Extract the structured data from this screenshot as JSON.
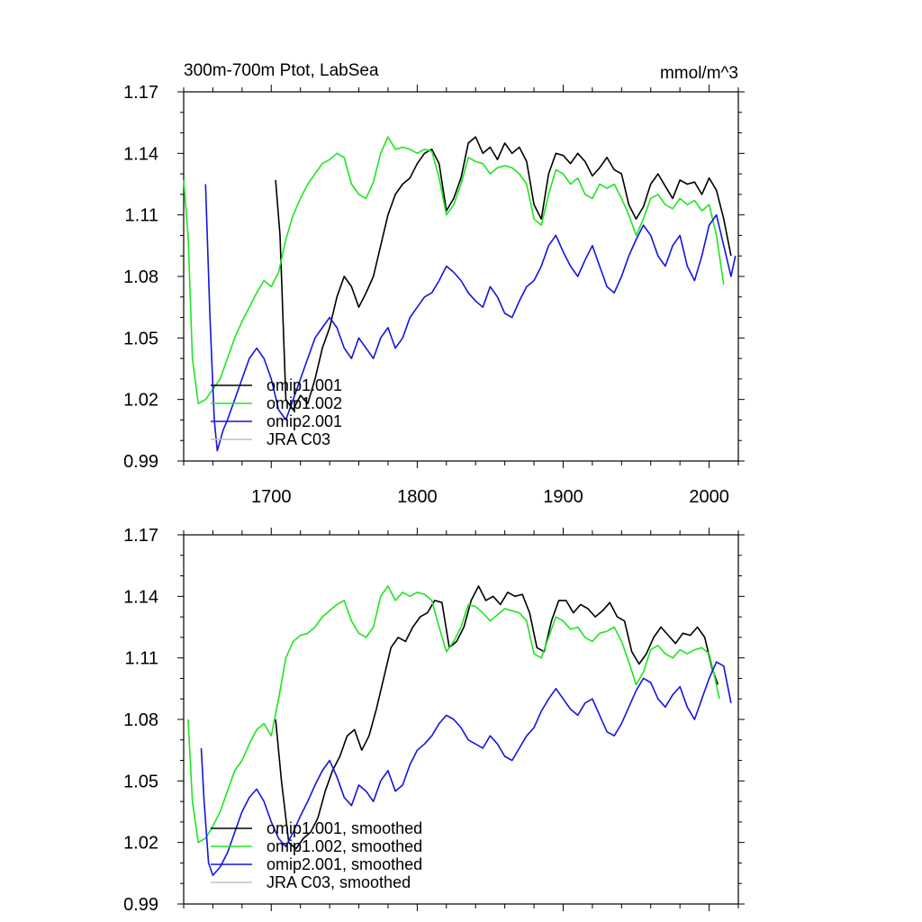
{
  "chart_data": [
    {
      "type": "line",
      "title_left": "300m-700m Ptot, LabSea",
      "title_right": "mmol/m^3",
      "xlim": [
        1640,
        2020
      ],
      "ylim": [
        0.99,
        1.17
      ],
      "xticks": [
        1700,
        1800,
        1900,
        2000
      ],
      "show_xtick_labels": true,
      "yticks": [
        0.99,
        1.02,
        1.05,
        1.08,
        1.11,
        1.14,
        1.17
      ],
      "ytick_labels": [
        "0.99",
        "1.02",
        "1.05",
        "1.08",
        "1.11",
        "1.14",
        "1.17"
      ],
      "legend_position": "bottom-left",
      "legend": [
        "omip1.001",
        "omip1.002",
        "omip2.001",
        "JRA C03"
      ],
      "series": [
        {
          "name": "omip1.001",
          "color": "#000000",
          "x": [
            1703,
            1706,
            1710,
            1715,
            1720,
            1725,
            1730,
            1735,
            1740,
            1745,
            1750,
            1755,
            1760,
            1765,
            1770,
            1775,
            1780,
            1785,
            1790,
            1795,
            1800,
            1805,
            1810,
            1815,
            1820,
            1825,
            1830,
            1835,
            1840,
            1845,
            1850,
            1855,
            1860,
            1865,
            1870,
            1875,
            1880,
            1885,
            1890,
            1895,
            1900,
            1905,
            1910,
            1915,
            1920,
            1925,
            1930,
            1935,
            1940,
            1945,
            1950,
            1955,
            1960,
            1965,
            1970,
            1975,
            1980,
            1985,
            1990,
            1995,
            2000,
            2005,
            2010,
            2015
          ],
          "values": [
            1.127,
            1.1,
            1.02,
            1.015,
            1.022,
            1.018,
            1.03,
            1.045,
            1.055,
            1.07,
            1.08,
            1.075,
            1.065,
            1.072,
            1.08,
            1.095,
            1.11,
            1.12,
            1.125,
            1.128,
            1.135,
            1.14,
            1.142,
            1.135,
            1.112,
            1.118,
            1.128,
            1.145,
            1.148,
            1.14,
            1.143,
            1.137,
            1.145,
            1.14,
            1.143,
            1.136,
            1.115,
            1.108,
            1.13,
            1.14,
            1.139,
            1.135,
            1.14,
            1.136,
            1.129,
            1.133,
            1.138,
            1.132,
            1.13,
            1.115,
            1.108,
            1.114,
            1.125,
            1.13,
            1.124,
            1.118,
            1.127,
            1.125,
            1.126,
            1.12,
            1.128,
            1.122,
            1.108,
            1.09
          ]
        },
        {
          "name": "omip1.002",
          "color": "#1fe51f",
          "x": [
            1640,
            1643,
            1646,
            1650,
            1655,
            1660,
            1665,
            1670,
            1675,
            1680,
            1685,
            1690,
            1695,
            1700,
            1705,
            1710,
            1715,
            1720,
            1725,
            1730,
            1735,
            1740,
            1745,
            1750,
            1755,
            1760,
            1765,
            1770,
            1775,
            1780,
            1785,
            1790,
            1795,
            1800,
            1805,
            1810,
            1815,
            1820,
            1825,
            1830,
            1835,
            1840,
            1845,
            1850,
            1855,
            1860,
            1865,
            1870,
            1875,
            1880,
            1885,
            1890,
            1895,
            1900,
            1905,
            1910,
            1915,
            1920,
            1925,
            1930,
            1935,
            1940,
            1945,
            1950,
            1955,
            1960,
            1965,
            1970,
            1975,
            1980,
            1985,
            1990,
            1995,
            2000,
            2005,
            2010
          ],
          "values": [
            1.127,
            1.1,
            1.04,
            1.018,
            1.02,
            1.025,
            1.03,
            1.04,
            1.05,
            1.058,
            1.065,
            1.072,
            1.078,
            1.075,
            1.082,
            1.098,
            1.11,
            1.118,
            1.125,
            1.13,
            1.135,
            1.137,
            1.14,
            1.138,
            1.125,
            1.12,
            1.118,
            1.126,
            1.14,
            1.148,
            1.142,
            1.143,
            1.142,
            1.14,
            1.142,
            1.141,
            1.128,
            1.11,
            1.115,
            1.125,
            1.138,
            1.136,
            1.135,
            1.13,
            1.133,
            1.134,
            1.133,
            1.13,
            1.125,
            1.108,
            1.105,
            1.12,
            1.132,
            1.13,
            1.125,
            1.128,
            1.12,
            1.118,
            1.125,
            1.123,
            1.125,
            1.118,
            1.11,
            1.1,
            1.108,
            1.118,
            1.12,
            1.115,
            1.113,
            1.118,
            1.115,
            1.117,
            1.112,
            1.115,
            1.1,
            1.076
          ]
        },
        {
          "name": "omip2.001",
          "color": "#1414e0",
          "x": [
            1655,
            1658,
            1661,
            1663,
            1667,
            1670,
            1675,
            1680,
            1685,
            1690,
            1695,
            1700,
            1705,
            1710,
            1715,
            1720,
            1725,
            1730,
            1735,
            1740,
            1745,
            1750,
            1755,
            1760,
            1765,
            1770,
            1775,
            1780,
            1785,
            1790,
            1795,
            1800,
            1805,
            1810,
            1815,
            1820,
            1825,
            1830,
            1835,
            1840,
            1845,
            1850,
            1855,
            1860,
            1865,
            1870,
            1875,
            1880,
            1885,
            1890,
            1895,
            1900,
            1905,
            1910,
            1915,
            1920,
            1925,
            1930,
            1935,
            1940,
            1945,
            1950,
            1955,
            1960,
            1965,
            1970,
            1975,
            1980,
            1985,
            1990,
            1995,
            2000,
            2005,
            2010,
            2015,
            2018
          ],
          "values": [
            1.125,
            1.06,
            1.01,
            0.995,
            1.005,
            1.01,
            1.02,
            1.03,
            1.04,
            1.045,
            1.04,
            1.03,
            1.015,
            1.01,
            1.02,
            1.03,
            1.04,
            1.05,
            1.055,
            1.06,
            1.055,
            1.045,
            1.04,
            1.05,
            1.045,
            1.04,
            1.05,
            1.055,
            1.045,
            1.05,
            1.06,
            1.065,
            1.07,
            1.072,
            1.078,
            1.085,
            1.082,
            1.078,
            1.072,
            1.068,
            1.065,
            1.075,
            1.07,
            1.062,
            1.06,
            1.068,
            1.075,
            1.078,
            1.085,
            1.095,
            1.1,
            1.092,
            1.085,
            1.08,
            1.088,
            1.095,
            1.085,
            1.075,
            1.072,
            1.08,
            1.09,
            1.098,
            1.105,
            1.1,
            1.09,
            1.085,
            1.095,
            1.1,
            1.085,
            1.078,
            1.09,
            1.105,
            1.11,
            1.095,
            1.08,
            1.09
          ]
        },
        {
          "name": "JRA C03",
          "color": "#bfbfbf",
          "x": [],
          "values": []
        }
      ]
    },
    {
      "type": "line",
      "xlim": [
        1640,
        2020
      ],
      "ylim": [
        0.99,
        1.17
      ],
      "xticks": [
        1700,
        1800,
        1900,
        2000
      ],
      "show_xtick_labels": false,
      "yticks": [
        0.99,
        1.02,
        1.05,
        1.08,
        1.11,
        1.14,
        1.17
      ],
      "ytick_labels": [
        "0.99",
        "1.02",
        "1.05",
        "1.08",
        "1.11",
        "1.14",
        "1.17"
      ],
      "legend_position": "bottom-left",
      "legend": [
        "omip1.001, smoothed",
        "omip1.002, smoothed",
        "omip2.001, smoothed",
        "JRA C03, smoothed"
      ],
      "series": [
        {
          "name": "omip1.001, smoothed",
          "color": "#000000",
          "x": [
            1703,
            1707,
            1712,
            1717,
            1722,
            1727,
            1732,
            1737,
            1742,
            1747,
            1752,
            1757,
            1762,
            1767,
            1772,
            1777,
            1782,
            1787,
            1792,
            1797,
            1802,
            1807,
            1812,
            1817,
            1822,
            1827,
            1832,
            1837,
            1842,
            1847,
            1852,
            1857,
            1862,
            1867,
            1872,
            1877,
            1882,
            1887,
            1892,
            1897,
            1902,
            1907,
            1912,
            1917,
            1922,
            1927,
            1932,
            1937,
            1942,
            1947,
            1952,
            1957,
            1962,
            1967,
            1972,
            1977,
            1982,
            1987,
            1992,
            1997,
            2002,
            2006
          ],
          "values": [
            1.08,
            1.05,
            1.02,
            1.017,
            1.022,
            1.025,
            1.032,
            1.045,
            1.055,
            1.062,
            1.072,
            1.075,
            1.065,
            1.072,
            1.085,
            1.1,
            1.115,
            1.12,
            1.118,
            1.125,
            1.13,
            1.132,
            1.138,
            1.137,
            1.115,
            1.118,
            1.125,
            1.138,
            1.145,
            1.138,
            1.14,
            1.136,
            1.142,
            1.14,
            1.141,
            1.132,
            1.115,
            1.113,
            1.128,
            1.138,
            1.138,
            1.132,
            1.136,
            1.134,
            1.13,
            1.133,
            1.137,
            1.13,
            1.128,
            1.113,
            1.107,
            1.112,
            1.12,
            1.125,
            1.121,
            1.117,
            1.122,
            1.121,
            1.125,
            1.12,
            1.105,
            1.097
          ]
        },
        {
          "name": "omip1.002, smoothed",
          "color": "#1fe51f",
          "x": [
            1643,
            1646,
            1650,
            1655,
            1660,
            1665,
            1670,
            1675,
            1680,
            1685,
            1690,
            1695,
            1700,
            1705,
            1710,
            1715,
            1720,
            1725,
            1730,
            1735,
            1740,
            1745,
            1750,
            1755,
            1760,
            1765,
            1770,
            1775,
            1780,
            1785,
            1790,
            1795,
            1800,
            1805,
            1810,
            1815,
            1820,
            1825,
            1830,
            1835,
            1840,
            1845,
            1850,
            1855,
            1860,
            1865,
            1870,
            1875,
            1880,
            1885,
            1890,
            1895,
            1900,
            1905,
            1910,
            1915,
            1920,
            1925,
            1930,
            1935,
            1940,
            1945,
            1950,
            1955,
            1960,
            1965,
            1970,
            1975,
            1980,
            1985,
            1990,
            1995,
            2000,
            2004,
            2007
          ],
          "values": [
            1.08,
            1.04,
            1.02,
            1.022,
            1.028,
            1.035,
            1.045,
            1.055,
            1.06,
            1.068,
            1.075,
            1.078,
            1.072,
            1.09,
            1.11,
            1.118,
            1.121,
            1.122,
            1.125,
            1.13,
            1.133,
            1.136,
            1.138,
            1.128,
            1.122,
            1.12,
            1.125,
            1.14,
            1.145,
            1.138,
            1.142,
            1.14,
            1.142,
            1.141,
            1.138,
            1.125,
            1.113,
            1.118,
            1.125,
            1.136,
            1.135,
            1.132,
            1.128,
            1.131,
            1.134,
            1.133,
            1.132,
            1.128,
            1.112,
            1.11,
            1.12,
            1.13,
            1.128,
            1.124,
            1.125,
            1.12,
            1.118,
            1.122,
            1.123,
            1.125,
            1.118,
            1.108,
            1.097,
            1.103,
            1.114,
            1.116,
            1.112,
            1.11,
            1.114,
            1.112,
            1.114,
            1.115,
            1.112,
            1.1,
            1.09
          ]
        },
        {
          "name": "omip2.001, smoothed",
          "color": "#1414e0",
          "x": [
            1652,
            1654,
            1657,
            1660,
            1665,
            1670,
            1675,
            1680,
            1685,
            1690,
            1695,
            1700,
            1705,
            1710,
            1715,
            1720,
            1725,
            1730,
            1735,
            1740,
            1745,
            1750,
            1755,
            1760,
            1765,
            1770,
            1775,
            1780,
            1785,
            1790,
            1795,
            1800,
            1805,
            1810,
            1815,
            1820,
            1825,
            1830,
            1835,
            1840,
            1845,
            1850,
            1855,
            1860,
            1865,
            1870,
            1875,
            1880,
            1885,
            1890,
            1895,
            1900,
            1905,
            1910,
            1915,
            1920,
            1925,
            1930,
            1935,
            1940,
            1945,
            1950,
            1955,
            1960,
            1965,
            1970,
            1975,
            1980,
            1985,
            1990,
            1995,
            2000,
            2005,
            2010,
            2015
          ],
          "values": [
            1.066,
            1.04,
            1.01,
            1.004,
            1.008,
            1.015,
            1.025,
            1.035,
            1.042,
            1.046,
            1.04,
            1.03,
            1.022,
            1.018,
            1.025,
            1.033,
            1.04,
            1.048,
            1.055,
            1.06,
            1.052,
            1.042,
            1.038,
            1.048,
            1.045,
            1.04,
            1.05,
            1.055,
            1.045,
            1.048,
            1.058,
            1.065,
            1.068,
            1.072,
            1.078,
            1.082,
            1.08,
            1.076,
            1.07,
            1.068,
            1.066,
            1.072,
            1.068,
            1.062,
            1.06,
            1.066,
            1.072,
            1.076,
            1.084,
            1.09,
            1.095,
            1.09,
            1.085,
            1.082,
            1.088,
            1.09,
            1.082,
            1.074,
            1.072,
            1.078,
            1.086,
            1.094,
            1.1,
            1.098,
            1.09,
            1.086,
            1.092,
            1.096,
            1.086,
            1.08,
            1.09,
            1.1,
            1.108,
            1.106,
            1.088
          ]
        },
        {
          "name": "JRA C03, smoothed",
          "color": "#bfbfbf",
          "x": [],
          "values": []
        }
      ]
    }
  ]
}
